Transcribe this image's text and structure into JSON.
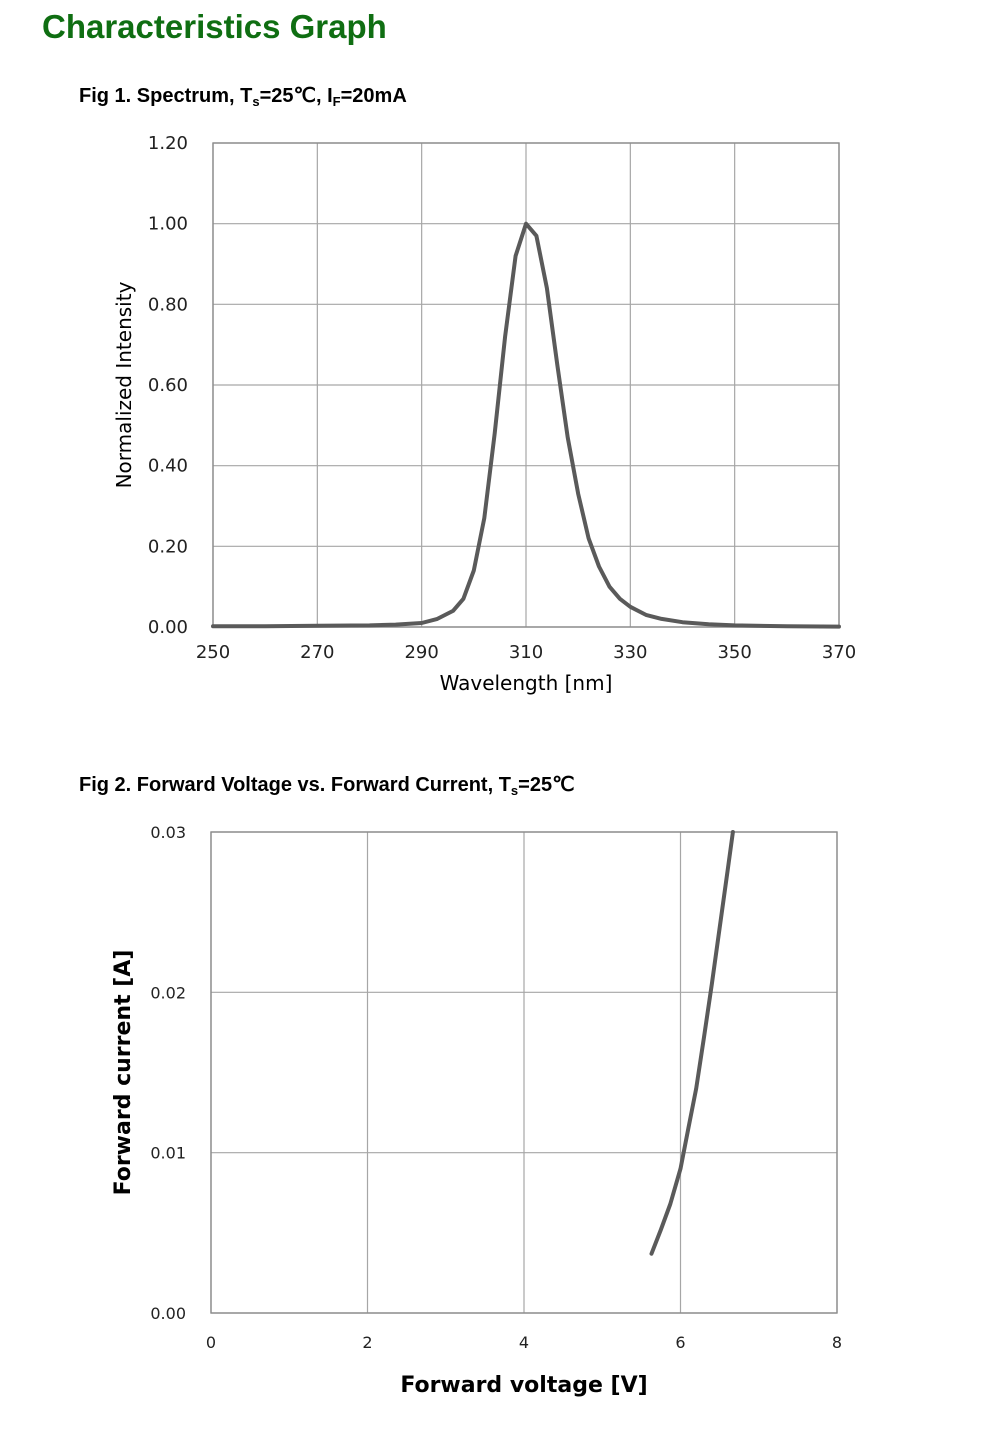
{
  "page": {
    "title": "Characteristics Graph",
    "title_color": "#0f6e12"
  },
  "fig1": {
    "caption_prefix": "Fig 1. Spectrum, T",
    "caption_sub1": "s",
    "caption_mid": "=25℃, I",
    "caption_sub2": "F",
    "caption_suffix": "=20mA"
  },
  "fig2": {
    "caption_prefix": "Fig 2. Forward Voltage vs. Forward Current, T",
    "caption_sub1": "s",
    "caption_suffix": "=25℃"
  },
  "chart_data": [
    {
      "type": "line",
      "xlabel": "Wavelength [nm]",
      "ylabel": "Normalized Intensity",
      "xlim": [
        250,
        370
      ],
      "ylim": [
        0,
        1.2
      ],
      "x_ticks": [
        "250",
        "270",
        "290",
        "310",
        "330",
        "350",
        "370"
      ],
      "y_ticks": [
        "0.00",
        "0.20",
        "0.40",
        "0.60",
        "0.80",
        "1.00",
        "1.20"
      ],
      "grid": true,
      "line_color": "#5a5a5a",
      "series": [
        {
          "x": [
            250,
            260,
            270,
            280,
            285,
            290,
            293,
            296,
            298,
            300,
            302,
            304,
            306,
            308,
            310,
            312,
            314,
            316,
            318,
            320,
            322,
            324,
            326,
            328,
            330,
            333,
            336,
            340,
            345,
            350,
            360,
            370
          ],
          "y": [
            0.002,
            0.002,
            0.003,
            0.004,
            0.006,
            0.01,
            0.02,
            0.04,
            0.07,
            0.14,
            0.27,
            0.48,
            0.72,
            0.92,
            1.0,
            0.97,
            0.84,
            0.65,
            0.47,
            0.33,
            0.22,
            0.15,
            0.1,
            0.07,
            0.05,
            0.03,
            0.02,
            0.012,
            0.007,
            0.004,
            0.002,
            0.001
          ]
        }
      ]
    },
    {
      "type": "line",
      "xlabel": "Forward voltage [V]",
      "ylabel": "Forward current [A]",
      "xlim": [
        0,
        8
      ],
      "ylim": [
        0,
        0.03
      ],
      "x_ticks": [
        "0",
        "2",
        "4",
        "6",
        "8"
      ],
      "y_ticks": [
        "0.00",
        "0.01",
        "0.02",
        "0.03"
      ],
      "grid": true,
      "line_color": "#5a5a5a",
      "series": [
        {
          "x": [
            5.63,
            5.75,
            5.87,
            6.0,
            6.1,
            6.2,
            6.3,
            6.4,
            6.5,
            6.6,
            6.67
          ],
          "y": [
            0.0037,
            0.0052,
            0.0068,
            0.009,
            0.0115,
            0.014,
            0.0172,
            0.0205,
            0.024,
            0.0275,
            0.03
          ]
        }
      ]
    }
  ]
}
